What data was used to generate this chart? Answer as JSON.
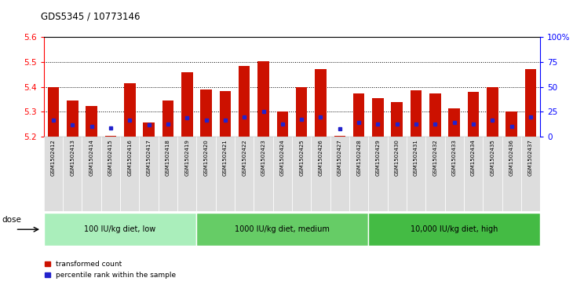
{
  "title": "GDS5345 / 10773146",
  "samples": [
    "GSM1502412",
    "GSM1502413",
    "GSM1502414",
    "GSM1502415",
    "GSM1502416",
    "GSM1502417",
    "GSM1502418",
    "GSM1502419",
    "GSM1502420",
    "GSM1502421",
    "GSM1502422",
    "GSM1502423",
    "GSM1502424",
    "GSM1502425",
    "GSM1502426",
    "GSM1502427",
    "GSM1502428",
    "GSM1502429",
    "GSM1502430",
    "GSM1502431",
    "GSM1502432",
    "GSM1502433",
    "GSM1502434",
    "GSM1502435",
    "GSM1502436",
    "GSM1502437"
  ],
  "bar_tops": [
    5.4,
    5.345,
    5.323,
    5.205,
    5.415,
    5.257,
    5.345,
    5.46,
    5.39,
    5.383,
    5.483,
    5.503,
    5.303,
    5.4,
    5.47,
    5.205,
    5.373,
    5.355,
    5.34,
    5.385,
    5.375,
    5.313,
    5.38,
    5.4,
    5.303,
    5.47
  ],
  "blue_positions": [
    5.268,
    5.248,
    5.243,
    5.235,
    5.267,
    5.247,
    5.252,
    5.277,
    5.267,
    5.267,
    5.278,
    5.302,
    5.252,
    5.27,
    5.278,
    5.232,
    5.258,
    5.25,
    5.25,
    5.25,
    5.25,
    5.258,
    5.25,
    5.267,
    5.243,
    5.278
  ],
  "y_min": 5.2,
  "y_max": 5.6,
  "bar_color": "#cc1100",
  "blue_color": "#2222cc",
  "groups": [
    {
      "label": "100 IU/kg diet, low",
      "start": 0,
      "end": 8
    },
    {
      "label": "1000 IU/kg diet, medium",
      "start": 8,
      "end": 17
    },
    {
      "label": "10,000 IU/kg diet, high",
      "start": 17,
      "end": 26
    }
  ],
  "group_colors": [
    "#aaeebb",
    "#66cc66",
    "#44bb44"
  ],
  "legend_labels": [
    "transformed count",
    "percentile rank within the sample"
  ],
  "legend_colors": [
    "#cc1100",
    "#2222cc"
  ],
  "dose_label": "dose",
  "right_yticks": [
    0,
    25,
    50,
    75,
    100
  ],
  "right_ytick_labels": [
    "0",
    "25",
    "50",
    "75",
    "100%"
  ],
  "left_yticks": [
    5.2,
    5.3,
    5.4,
    5.5,
    5.6
  ],
  "gridline_y": [
    5.3,
    5.4,
    5.5
  ]
}
